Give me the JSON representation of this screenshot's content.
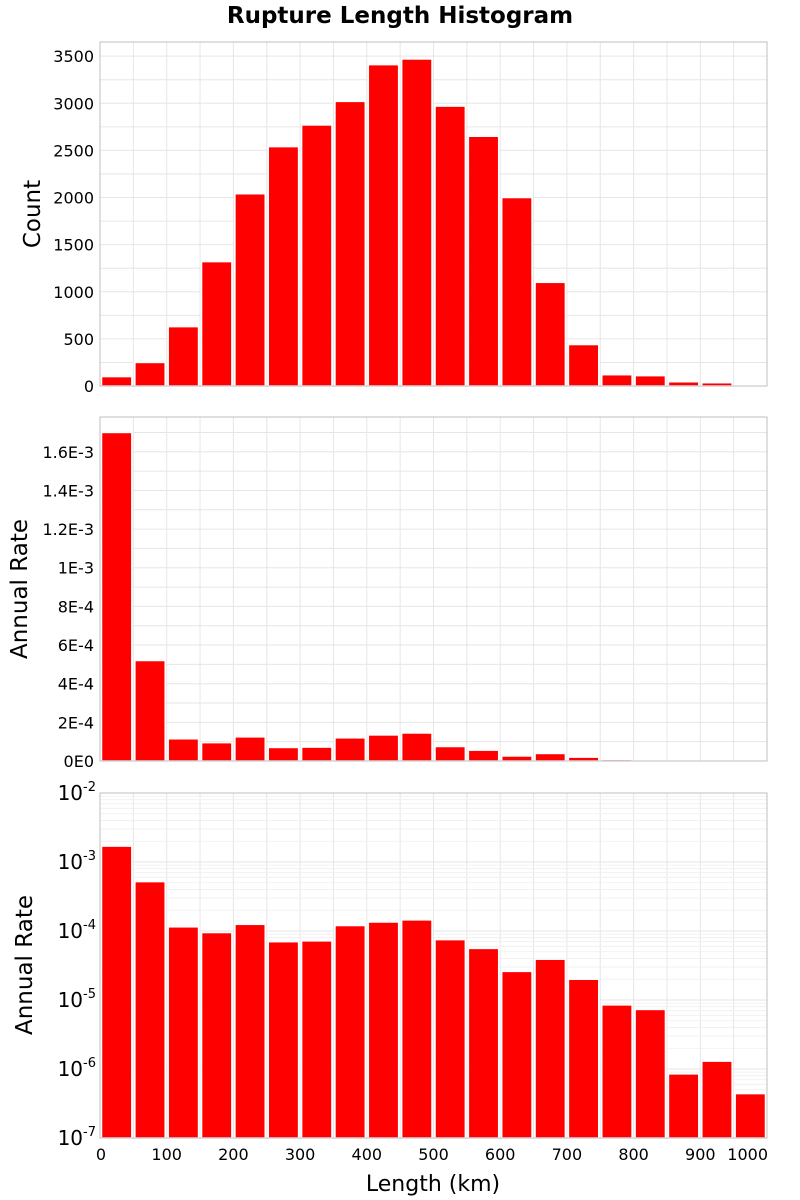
{
  "chart_data": [
    {
      "type": "bar",
      "title": "Rupture Length Histogram",
      "ylabel": "Count",
      "xlabel": "",
      "scale": "linear",
      "bin_width": 50,
      "x": [
        25,
        75,
        125,
        175,
        225,
        275,
        325,
        375,
        425,
        475,
        525,
        575,
        625,
        675,
        725,
        775,
        825,
        875,
        925,
        975
      ],
      "values": [
        100,
        250,
        630,
        1320,
        2040,
        2540,
        2770,
        3020,
        3410,
        3470,
        2970,
        2650,
        2000,
        1100,
        440,
        120,
        110,
        45,
        35,
        10
      ],
      "xlim": [
        0,
        1000
      ],
      "ylim": [
        0,
        3650
      ],
      "yticks": [
        0,
        500,
        1000,
        1500,
        2000,
        2500,
        3000,
        3500
      ],
      "ytick_labels": [
        "0",
        "500",
        "1000",
        "1500",
        "2000",
        "2500",
        "3000",
        "3500"
      ],
      "grid": true,
      "color": "#ff0000"
    },
    {
      "type": "bar",
      "title": "",
      "ylabel": "Annual Rate",
      "xlabel": "",
      "scale": "linear",
      "bin_width": 50,
      "x": [
        25,
        75,
        125,
        175,
        225,
        275,
        325,
        375,
        425,
        475,
        525,
        575,
        625,
        675,
        725,
        775,
        825,
        875,
        925,
        975
      ],
      "values": [
        0.0017,
        0.00052,
        0.000115,
        9.5e-05,
        0.000125,
        7e-05,
        7.2e-05,
        0.00012,
        0.000135,
        0.000145,
        7.5e-05,
        5.6e-05,
        2.6e-05,
        3.9e-05,
        2e-05,
        8.5e-06,
        7.3e-06,
        8.5e-07,
        1.3e-06,
        4.4e-07
      ],
      "xlim": [
        0,
        1000
      ],
      "ylim": [
        0,
        0.00178
      ],
      "yticks": [
        0,
        0.0002,
        0.0004,
        0.0006,
        0.0008,
        0.001,
        0.0012,
        0.0014,
        0.0016
      ],
      "ytick_labels": [
        "0E0",
        "2E-4",
        "4E-4",
        "6E-4",
        "8E-4",
        "1E-3",
        "1.2E-3",
        "1.4E-3",
        "1.6E-3"
      ],
      "grid": true,
      "color": "#ff0000"
    },
    {
      "type": "bar",
      "title": "",
      "ylabel": "Annual Rate",
      "xlabel": "Length (km)",
      "scale": "log",
      "bin_width": 50,
      "x": [
        25,
        75,
        125,
        175,
        225,
        275,
        325,
        375,
        425,
        475,
        525,
        575,
        625,
        675,
        725,
        775,
        825,
        875,
        925,
        975
      ],
      "values": [
        0.0017,
        0.00052,
        0.000115,
        9.5e-05,
        0.000125,
        7e-05,
        7.2e-05,
        0.00012,
        0.000135,
        0.000145,
        7.5e-05,
        5.6e-05,
        2.6e-05,
        3.9e-05,
        2e-05,
        8.5e-06,
        7.3e-06,
        8.5e-07,
        1.3e-06,
        4.4e-07
      ],
      "xlim": [
        0,
        1000
      ],
      "ylim": [
        1e-07,
        0.01
      ],
      "yticks_exponents": [
        -7,
        -6,
        -5,
        -4,
        -3,
        -2
      ],
      "ytick_base": "10",
      "ytick_exponent_labels": [
        "-7",
        "-6",
        "-5",
        "-4",
        "-3",
        "-2"
      ],
      "xticks": [
        0,
        100,
        200,
        300,
        400,
        500,
        600,
        700,
        800,
        900,
        1000
      ],
      "xtick_labels": [
        "0",
        "100",
        "200",
        "300",
        "400",
        "500",
        "600",
        "700",
        "800",
        "900",
        "1000"
      ],
      "grid": true,
      "color": "#ff0000"
    }
  ]
}
